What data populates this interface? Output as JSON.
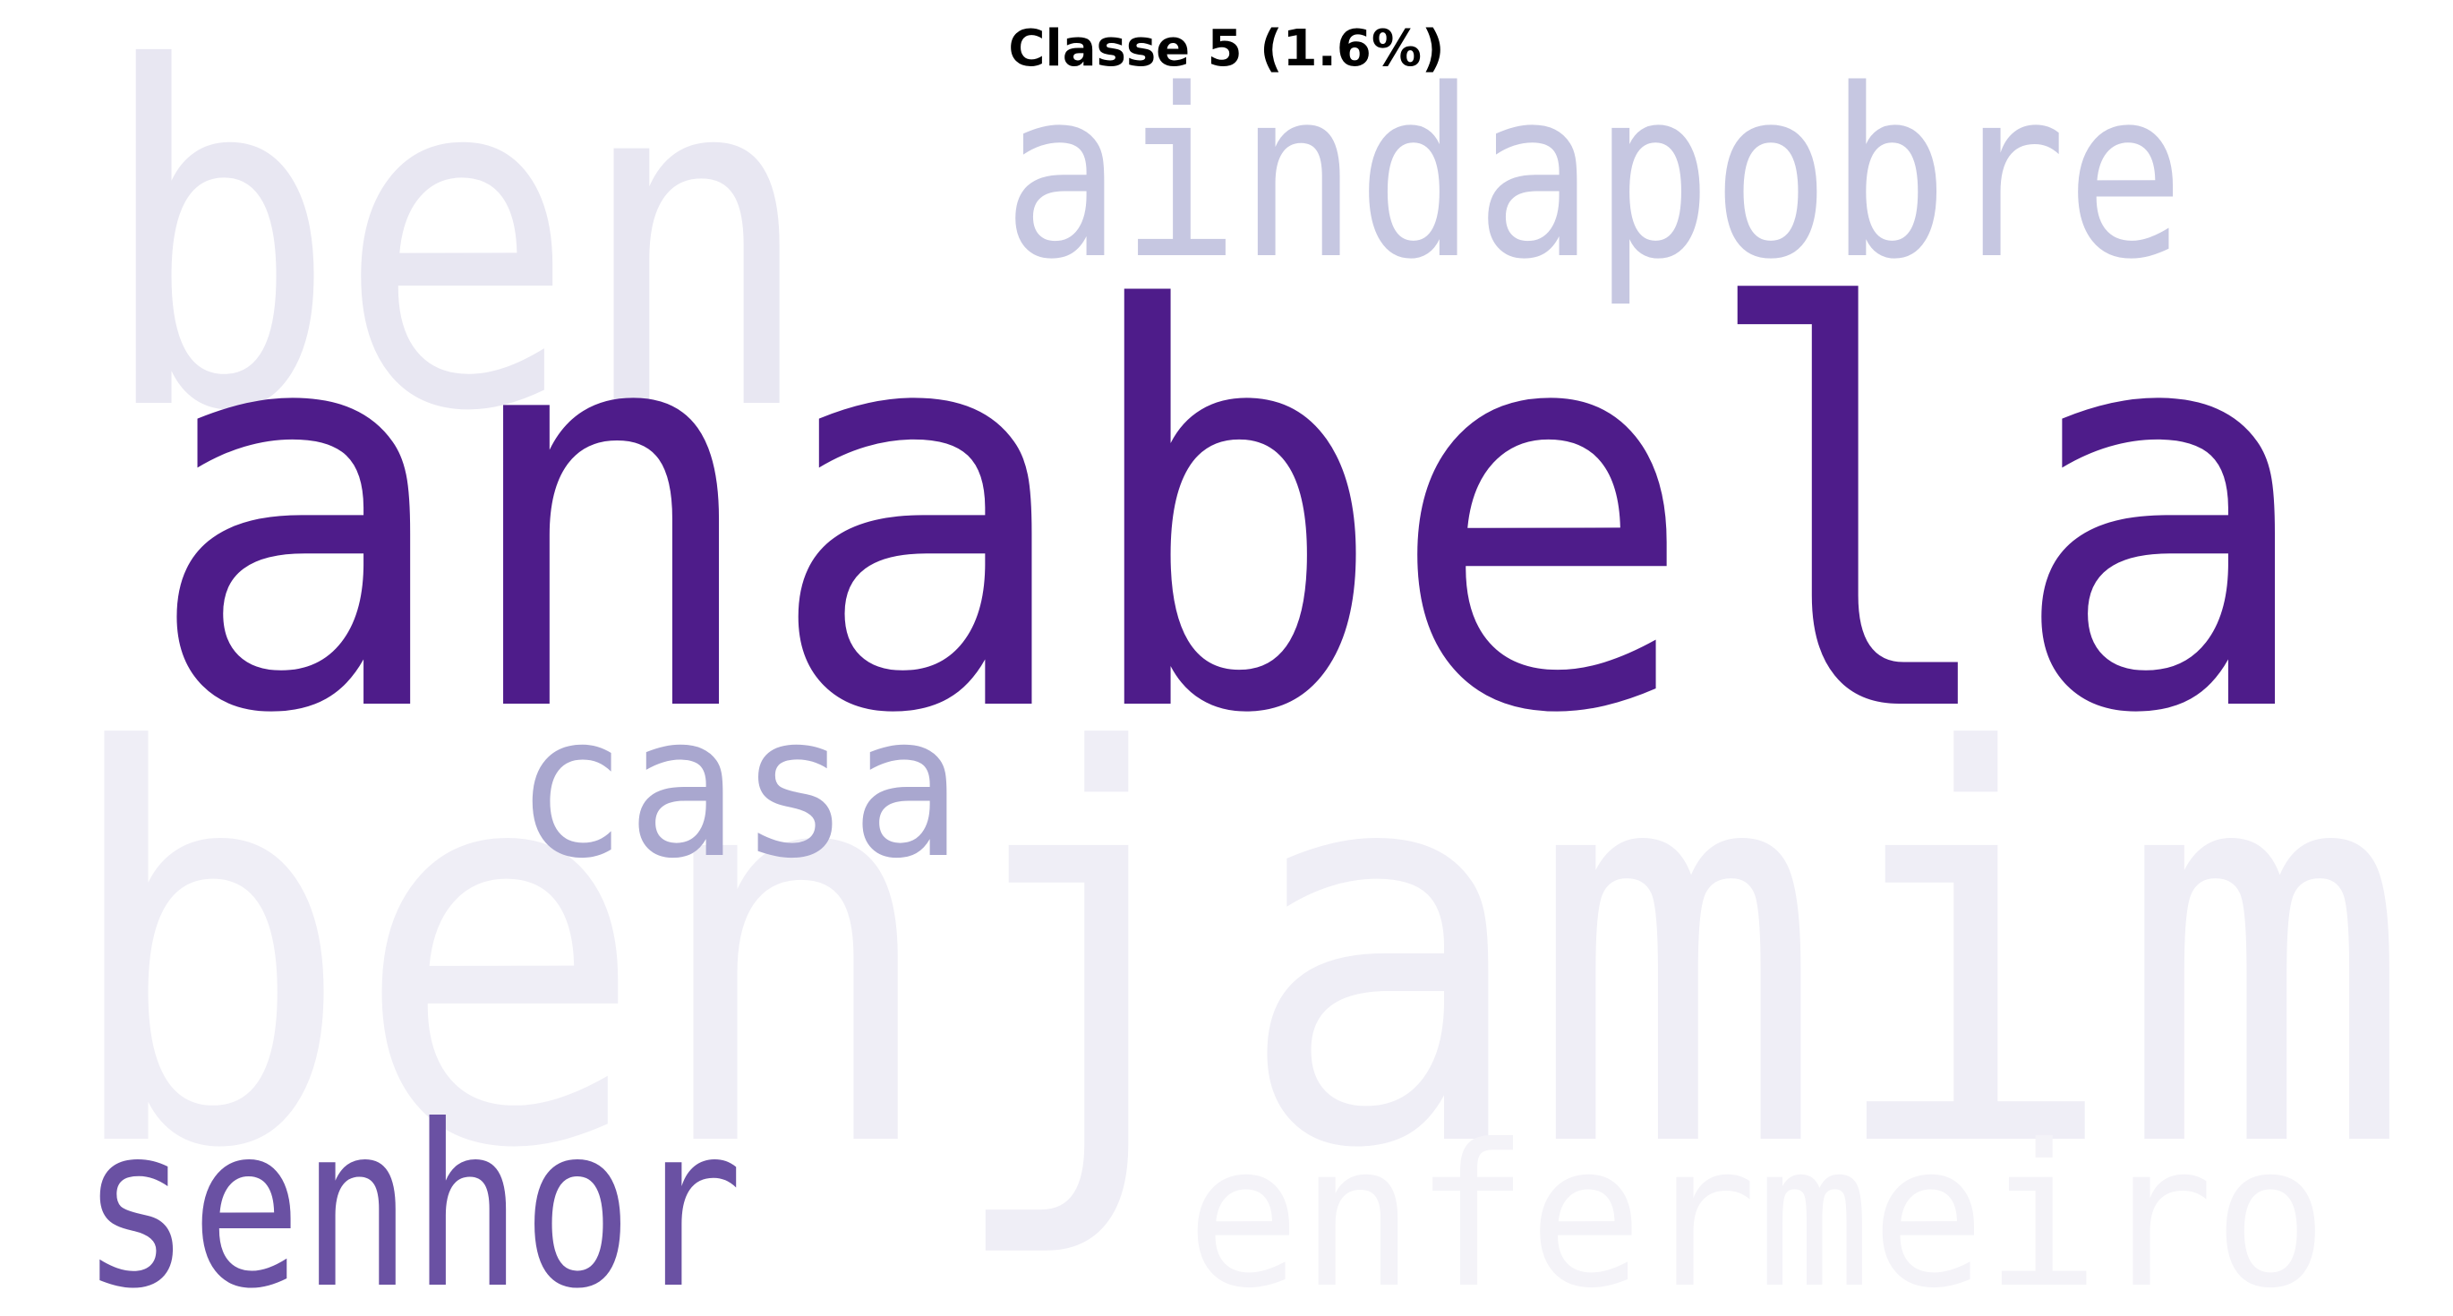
{
  "title": "Classe 5 (1.6%)",
  "words": [
    {
      "text": "benjamim",
      "color": "#efeef6"
    },
    {
      "text": "ben",
      "color": "#e8e7f2"
    },
    {
      "text": "aindapobre",
      "color": "#c6c7e1"
    },
    {
      "text": "anabela",
      "color": "#4e1c8a"
    },
    {
      "text": "casa",
      "color": "#a9a7cf"
    },
    {
      "text": "senhor",
      "color": "#6a51a3"
    },
    {
      "text": "enfermeiro",
      "color": "#f4f3f8"
    }
  ]
}
